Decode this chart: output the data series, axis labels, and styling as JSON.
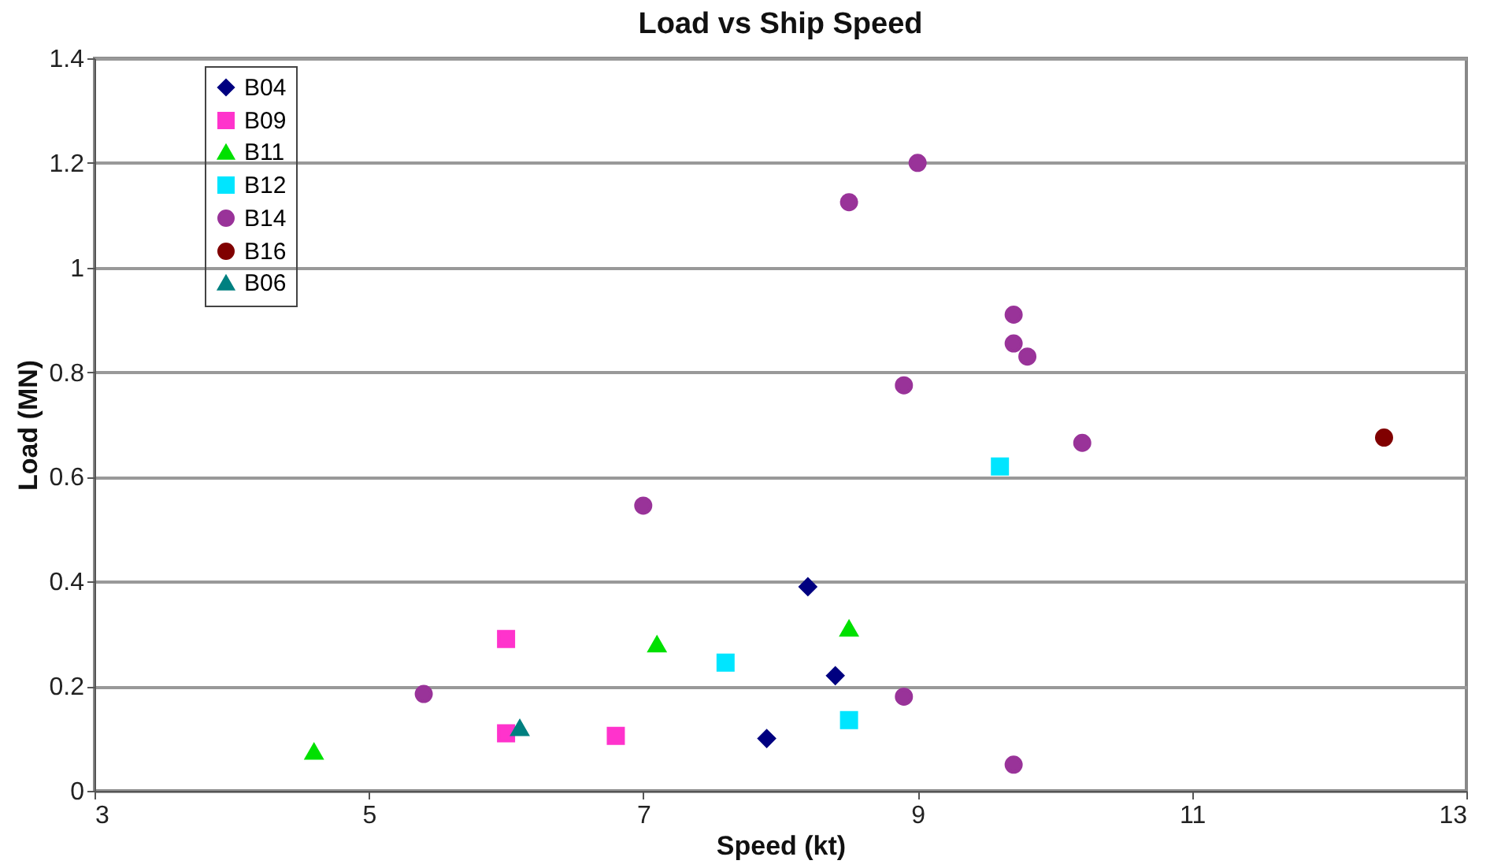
{
  "chart_data": {
    "type": "scatter",
    "title": "Load vs Ship Speed",
    "xlabel": "Speed (kt)",
    "ylabel": "Load (MN)",
    "xlim": [
      3,
      13
    ],
    "xticks": [
      3,
      5,
      7,
      9,
      11,
      13
    ],
    "ylim": [
      0,
      1.4
    ],
    "yticks": [
      0,
      0.2,
      0.4,
      0.6,
      0.8,
      1,
      1.2,
      1.4
    ],
    "grid": "y",
    "legend": "top left",
    "series": [
      {
        "name": "B04",
        "color": "#000080",
        "marker": "diamond",
        "x": [
          8.2,
          8.4,
          7.9
        ],
        "values": [
          0.39,
          0.22,
          0.1
        ]
      },
      {
        "name": "B09",
        "color": "#ff33cc",
        "marker": "square",
        "x": [
          6.0,
          6.0,
          6.8
        ],
        "values": [
          0.29,
          0.11,
          0.105
        ]
      },
      {
        "name": "B11",
        "color": "#00e000",
        "marker": "triangle",
        "x": [
          4.6,
          7.1,
          8.5
        ],
        "values": [
          0.075,
          0.28,
          0.31
        ]
      },
      {
        "name": "B12",
        "color": "#00e5ff",
        "marker": "square",
        "x": [
          7.6,
          8.5,
          9.6
        ],
        "values": [
          0.245,
          0.135,
          0.62
        ]
      },
      {
        "name": "B14",
        "color": "#993399",
        "marker": "circle",
        "x": [
          5.4,
          7.0,
          9.0,
          8.5,
          9.7,
          9.7,
          9.8,
          8.9,
          10.2,
          8.9,
          9.7
        ],
        "values": [
          0.185,
          0.545,
          1.2,
          1.125,
          0.91,
          0.855,
          0.83,
          0.775,
          0.665,
          0.18,
          0.05
        ]
      },
      {
        "name": "B16",
        "color": "#800000",
        "marker": "circle",
        "x": [
          12.4
        ],
        "values": [
          0.675
        ]
      },
      {
        "name": "B06",
        "color": "#008080",
        "marker": "triangle",
        "x": [
          6.1
        ],
        "values": [
          0.12
        ]
      }
    ]
  }
}
